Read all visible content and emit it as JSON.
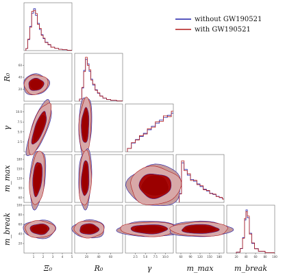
{
  "chart_data": {
    "type": "corner",
    "parameters": [
      {
        "key": "xi0",
        "label": "Ξ₀",
        "ticks": [
          "1",
          "2",
          "3",
          "4",
          "5"
        ],
        "range": [
          0,
          5
        ]
      },
      {
        "key": "r0",
        "label": "R₀",
        "ticks": [
          "20",
          "40",
          "60"
        ],
        "range": [
          0,
          80
        ]
      },
      {
        "key": "gamma",
        "label": "γ",
        "ticks": [
          "2.5",
          "5.0",
          "7.5",
          "10.0"
        ],
        "range": [
          0,
          12
        ]
      },
      {
        "key": "mmax",
        "label": "mₘₐₓ",
        "ticks": [
          "60",
          "90",
          "120",
          "150",
          "180"
        ],
        "range": [
          45,
          195
        ]
      },
      {
        "key": "mbreak",
        "label": "mₑᵣₑₐₖ",
        "ticks": [
          "20",
          "40",
          "60",
          "80",
          "100"
        ],
        "range": [
          0,
          100
        ]
      }
    ],
    "axis_labels": [
      "Ξ₀",
      "R₀",
      "γ",
      "m_max",
      "m_break"
    ],
    "series": [
      {
        "name": "without GW190521",
        "color": "#1f1fa8",
        "fill": "#1f1fa8"
      },
      {
        "name": "with GW190521",
        "color": "#b01818",
        "fill": "#9b0000"
      }
    ],
    "legend_position": "top-right",
    "histograms": {
      "xi0": [
        [
          0.2,
          0.05
        ],
        [
          0.4,
          0.25
        ],
        [
          0.6,
          0.55
        ],
        [
          0.8,
          0.85
        ],
        [
          1.0,
          0.95
        ],
        [
          1.2,
          0.8
        ],
        [
          1.4,
          0.62
        ],
        [
          1.6,
          0.48
        ],
        [
          1.8,
          0.36
        ],
        [
          2.0,
          0.27
        ],
        [
          2.2,
          0.19
        ],
        [
          2.5,
          0.13
        ],
        [
          2.8,
          0.08
        ],
        [
          3.2,
          0.05
        ],
        [
          3.6,
          0.03
        ],
        [
          4.0,
          0.02
        ],
        [
          4.5,
          0.01
        ]
      ],
      "r0": [
        [
          8,
          0.05
        ],
        [
          12,
          0.3
        ],
        [
          15,
          0.7
        ],
        [
          18,
          0.95
        ],
        [
          21,
          0.85
        ],
        [
          24,
          0.68
        ],
        [
          27,
          0.5
        ],
        [
          30,
          0.37
        ],
        [
          34,
          0.26
        ],
        [
          38,
          0.18
        ],
        [
          42,
          0.12
        ],
        [
          47,
          0.07
        ],
        [
          53,
          0.04
        ],
        [
          60,
          0.02
        ],
        [
          70,
          0.01
        ]
      ],
      "gamma": [
        [
          0.5,
          0.08
        ],
        [
          1.5,
          0.2
        ],
        [
          2.5,
          0.28
        ],
        [
          3.5,
          0.35
        ],
        [
          4.5,
          0.42
        ],
        [
          5.5,
          0.5
        ],
        [
          6.5,
          0.58
        ],
        [
          7.5,
          0.65
        ],
        [
          8.5,
          0.72
        ],
        [
          9.5,
          0.78
        ],
        [
          10.5,
          0.83
        ],
        [
          11.5,
          0.88
        ]
      ],
      "mmax": [
        [
          55,
          0.2
        ],
        [
          62,
          0.9
        ],
        [
          70,
          0.75
        ],
        [
          80,
          0.62
        ],
        [
          90,
          0.52
        ],
        [
          100,
          0.48
        ],
        [
          110,
          0.42
        ],
        [
          120,
          0.36
        ],
        [
          130,
          0.3
        ],
        [
          140,
          0.26
        ],
        [
          150,
          0.21
        ],
        [
          160,
          0.18
        ],
        [
          170,
          0.14
        ],
        [
          180,
          0.11
        ],
        [
          190,
          0.08
        ]
      ],
      "mbreak": [
        [
          20,
          0.02
        ],
        [
          28,
          0.1
        ],
        [
          33,
          0.35
        ],
        [
          37,
          0.75
        ],
        [
          40,
          0.98
        ],
        [
          43,
          0.8
        ],
        [
          47,
          0.45
        ],
        [
          52,
          0.22
        ],
        [
          58,
          0.1
        ],
        [
          66,
          0.04
        ],
        [
          80,
          0.01
        ]
      ]
    }
  }
}
